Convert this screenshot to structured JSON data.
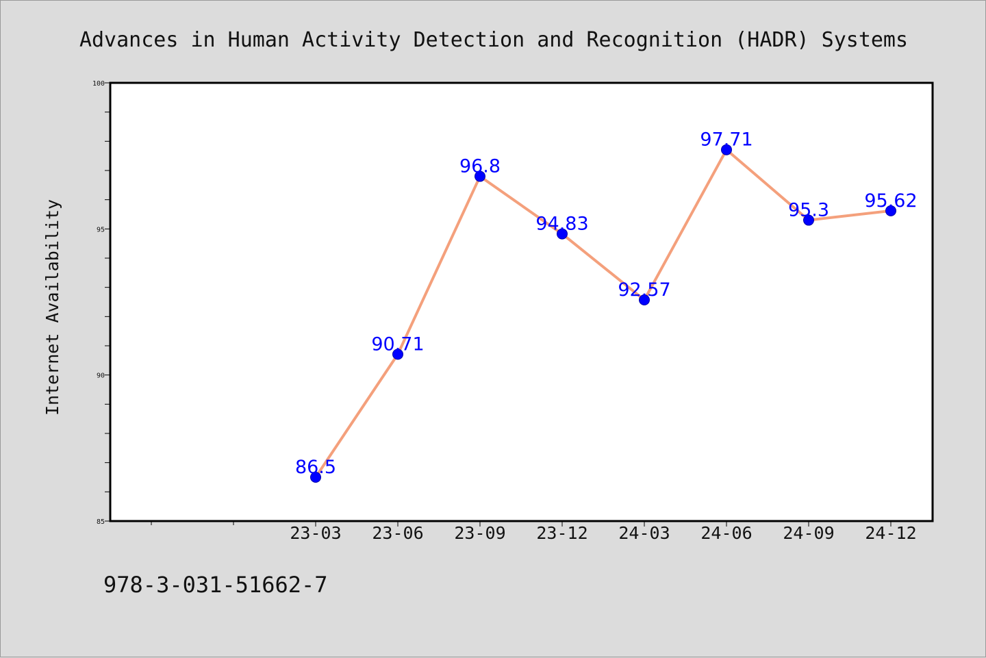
{
  "chart_data": {
    "type": "line",
    "title": "Advances in Human Activity Detection and Recognition (HADR) Systems",
    "xlabel": "",
    "ylabel": "Internet Availability",
    "categories": [
      "23-03",
      "23-06",
      "23-09",
      "23-12",
      "24-03",
      "24-06",
      "24-09",
      "24-12"
    ],
    "series": [
      {
        "values": [
          86.5,
          90.71,
          96.8,
          94.83,
          92.57,
          97.71,
          95.3,
          95.62
        ],
        "data_labels": [
          "86.5",
          "90.71",
          "96.8",
          "94.83",
          "92.57",
          "97.71",
          "95.3",
          "95.62"
        ],
        "line_color": "#f4a07c",
        "marker_color": "#0000ff",
        "label_color": "#0000ff"
      }
    ],
    "ylim": [
      85,
      100
    ],
    "yticks": [
      "85",
      "90",
      "95",
      "100"
    ],
    "legend": "none",
    "grid": false
  },
  "footer": {
    "isbn": "978-3-031-51662-7"
  },
  "colors": {
    "background": "#dcdcdc",
    "plot_background": "#ffffff",
    "axes": "#000000"
  }
}
